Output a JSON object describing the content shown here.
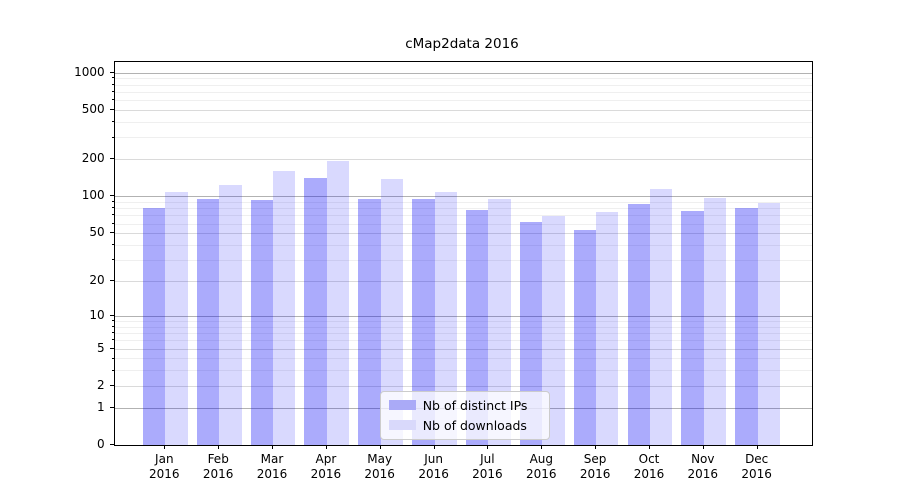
{
  "title": "cMap2data 2016",
  "chart_data": {
    "type": "bar",
    "categories": [
      "Jan",
      "Feb",
      "Mar",
      "Apr",
      "May",
      "Jun",
      "Jul",
      "Aug",
      "Sep",
      "Oct",
      "Nov",
      "Dec"
    ],
    "category_year": "2016",
    "series": [
      {
        "name": "Nb of distinct IPs",
        "fill": "rgba(0,0,245,0.33)",
        "swatch_color": "#aaaaf7",
        "values": [
          80,
          96,
          94,
          140,
          96,
          95,
          77,
          62,
          53,
          87,
          76,
          80
        ]
      },
      {
        "name": "Nb of downloads",
        "fill": "rgba(0,0,245,0.15)",
        "swatch_color": "#d9d9fb",
        "values": [
          109,
          123,
          162,
          194,
          138,
          108,
          96,
          69,
          74,
          114,
          97,
          89
        ]
      }
    ],
    "yscale": "log1p",
    "yticks_labeled": [
      0,
      1,
      2,
      5,
      10,
      20,
      50,
      100,
      200,
      500,
      1000
    ],
    "yticks_minor": [
      3,
      4,
      6,
      7,
      8,
      9,
      30,
      40,
      60,
      70,
      80,
      90,
      300,
      400,
      600,
      700,
      800,
      900
    ],
    "ylim": [
      0,
      1228
    ],
    "xlabel": "",
    "ylabel": "",
    "grid": true,
    "legend_position": "lower center"
  },
  "colors": {
    "background": "#ffffff",
    "axis": "#000000",
    "major_grid": "#b2b2b2",
    "labeled_grid": "#dadada",
    "minor_grid": "#efefef",
    "legend_border": "#cccccc"
  }
}
